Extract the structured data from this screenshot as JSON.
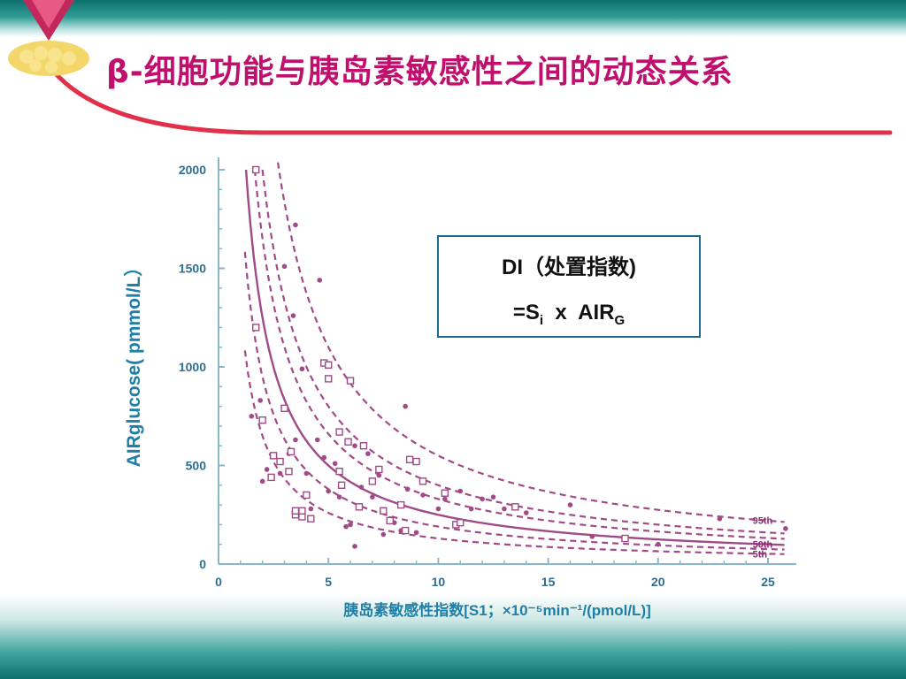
{
  "slide": {
    "title": "β-细胞功能与胰岛素敏感性之间的动态关系"
  },
  "di_box": {
    "line1": "DI（处置指数)",
    "line2_prefix": "=S",
    "line2_sub1": "i",
    "line2_mid": "  x  AIR",
    "line2_sub2": "G"
  },
  "colors": {
    "title": "#c0106e",
    "axis_text": "#1f7fa6",
    "curve": "#a04a88",
    "points": "#a04a88",
    "band": "#1f8a84"
  },
  "chart_data": {
    "type": "scatter",
    "title": "",
    "xlabel": "胰岛素敏感性指数[S1；×10⁻⁵min⁻¹/(pmol/L)]",
    "ylabel": "AIRglucose( pmmol/L）",
    "xlim": [
      0,
      26
    ],
    "ylim": [
      0,
      2050
    ],
    "xticks": [
      "0",
      "5",
      "10",
      "15",
      "20",
      "25"
    ],
    "yticks": [
      "0",
      "500",
      "1000",
      "1500",
      "2000"
    ],
    "grid": false,
    "percentile_curves": [
      {
        "label": "95th",
        "k": 5500,
        "style": "dashed"
      },
      {
        "label": "50th",
        "k": 2500,
        "style": "solid"
      },
      {
        "label": "5th",
        "k": 1300,
        "style": "dashed"
      }
    ],
    "extra_dashed_k": [
      4000,
      3300,
      1900
    ],
    "series": [
      {
        "marker": "circle",
        "points": [
          [
            1.5,
            750
          ],
          [
            1.9,
            830
          ],
          [
            2.0,
            420
          ],
          [
            2.2,
            480
          ],
          [
            2.8,
            460
          ],
          [
            3.0,
            1510
          ],
          [
            3.0,
            790
          ],
          [
            3.2,
            560
          ],
          [
            3.4,
            1260
          ],
          [
            3.5,
            630
          ],
          [
            3.5,
            1720
          ],
          [
            3.8,
            990
          ],
          [
            4.0,
            460
          ],
          [
            4.2,
            280
          ],
          [
            4.5,
            630
          ],
          [
            4.6,
            1440
          ],
          [
            4.8,
            540
          ],
          [
            5.0,
            370
          ],
          [
            5.3,
            510
          ],
          [
            5.5,
            340
          ],
          [
            5.8,
            190
          ],
          [
            6.0,
            200
          ],
          [
            6.2,
            600
          ],
          [
            6.2,
            90
          ],
          [
            6.5,
            390
          ],
          [
            6.8,
            560
          ],
          [
            7.0,
            340
          ],
          [
            7.3,
            450
          ],
          [
            7.5,
            150
          ],
          [
            7.8,
            230
          ],
          [
            8.0,
            210
          ],
          [
            8.3,
            170
          ],
          [
            8.5,
            800
          ],
          [
            8.6,
            380
          ],
          [
            9.0,
            160
          ],
          [
            9.3,
            350
          ],
          [
            10.0,
            280
          ],
          [
            10.3,
            330
          ],
          [
            11.0,
            370
          ],
          [
            11.5,
            280
          ],
          [
            12.0,
            330
          ],
          [
            12.5,
            340
          ],
          [
            13.0,
            280
          ],
          [
            14.0,
            260
          ],
          [
            16.0,
            300
          ],
          [
            17.0,
            140
          ],
          [
            20.0,
            100
          ],
          [
            22.8,
            230
          ],
          [
            25.8,
            180
          ]
        ]
      },
      {
        "marker": "square",
        "points": [
          [
            1.7,
            2000
          ],
          [
            1.7,
            1200
          ],
          [
            2.0,
            730
          ],
          [
            2.4,
            440
          ],
          [
            2.5,
            550
          ],
          [
            2.8,
            520
          ],
          [
            3.0,
            790
          ],
          [
            3.2,
            470
          ],
          [
            3.3,
            570
          ],
          [
            3.5,
            250
          ],
          [
            3.5,
            270
          ],
          [
            3.8,
            240
          ],
          [
            3.8,
            270
          ],
          [
            4.0,
            350
          ],
          [
            4.2,
            230
          ],
          [
            4.8,
            1020
          ],
          [
            5.0,
            1010
          ],
          [
            5.0,
            940
          ],
          [
            5.5,
            670
          ],
          [
            5.5,
            470
          ],
          [
            5.6,
            400
          ],
          [
            5.9,
            620
          ],
          [
            6.0,
            930
          ],
          [
            6.4,
            290
          ],
          [
            6.6,
            600
          ],
          [
            7.0,
            420
          ],
          [
            7.3,
            480
          ],
          [
            7.5,
            270
          ],
          [
            7.8,
            220
          ],
          [
            8.3,
            300
          ],
          [
            8.5,
            170
          ],
          [
            8.7,
            530
          ],
          [
            9.0,
            520
          ],
          [
            9.3,
            420
          ],
          [
            10.3,
            360
          ],
          [
            10.8,
            200
          ],
          [
            11.0,
            210
          ],
          [
            13.5,
            290
          ],
          [
            18.5,
            130
          ]
        ]
      }
    ]
  }
}
